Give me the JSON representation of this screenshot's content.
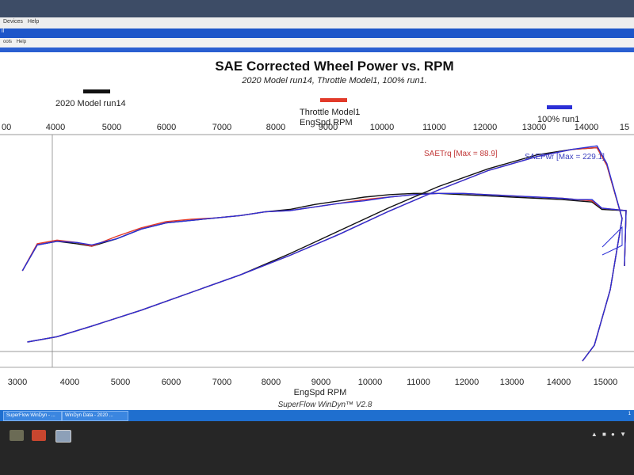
{
  "window": {
    "menu_top": [
      "Devices",
      "Help"
    ],
    "menu_second": [
      "ools",
      "Help"
    ],
    "blue_label": "il"
  },
  "chart_data": {
    "type": "line",
    "title": "SAE Corrected Wheel Power vs. RPM",
    "subtitle": "2020 Model run14, Throttle Model1, 100% run1.",
    "xlabel": "EngSpd  RPM",
    "xlabel_top": "EngSpd  RPM",
    "footer": "SuperFlow WinDyn™ V2.8",
    "top_ticks": [
      "00",
      "4000",
      "5000",
      "6000",
      "7000",
      "8000",
      "9000",
      "10000",
      "11000",
      "12000",
      "13000",
      "14000",
      "15"
    ],
    "bottom_ticks": [
      "3000",
      "4000",
      "5000",
      "6000",
      "7000",
      "8000",
      "9000",
      "10000",
      "11000",
      "12000",
      "13000",
      "14000",
      "15000"
    ],
    "xlim": [
      3000,
      15300
    ],
    "legend": [
      {
        "name": "2020 Model run14",
        "color": "#111111"
      },
      {
        "name": "Throttle Model1",
        "color": "#e23a2a"
      },
      {
        "name": "100% run1",
        "color": "#2b2fd6"
      }
    ],
    "annotations": {
      "torque": "SAETrq [Max = 88.9]",
      "power": "SAEPwr [Max = 229.1]"
    },
    "series": [
      {
        "name": "2020 Model run14 SAETrq",
        "color": "#111111",
        "x": [
          3100,
          3400,
          3800,
          4200,
          4500,
          5000,
          5500,
          6000,
          6500,
          7000,
          7500,
          8000,
          8500,
          9000,
          9500,
          10000,
          10500,
          11000,
          11500,
          12000,
          12500,
          13000,
          13500,
          14000,
          14300,
          14600,
          14800
        ],
        "y": [
          40,
          61,
          64,
          62,
          60,
          66,
          74,
          79,
          81,
          83,
          85,
          88,
          90,
          94,
          97,
          100,
          102,
          103,
          103,
          102,
          101,
          100,
          99,
          98,
          97,
          96,
          90
        ]
      },
      {
        "name": "Throttle Model1 SAETrq",
        "color": "#e23a2a",
        "x": [
          3100,
          3400,
          3800,
          4200,
          4500,
          5000,
          5500,
          6000,
          6500,
          7000,
          7500,
          8000,
          8500,
          9000,
          9500,
          10000,
          10500,
          11000,
          11500,
          12000,
          12500,
          13000,
          13500,
          14000,
          14300,
          14600,
          14800
        ],
        "y": [
          40,
          62,
          65,
          63,
          60,
          68,
          75,
          80,
          82,
          83,
          85,
          88,
          89,
          92,
          95,
          98,
          100,
          102,
          103,
          103,
          102,
          101,
          100,
          99,
          98,
          97,
          91
        ]
      },
      {
        "name": "100% run1 SAETrq",
        "color": "#2b2fd6",
        "x": [
          3100,
          3400,
          3800,
          4200,
          4500,
          5000,
          5500,
          6000,
          6500,
          7000,
          7500,
          8000,
          8500,
          9000,
          9500,
          10000,
          10500,
          11000,
          11500,
          12000,
          12500,
          13000,
          13500,
          14000,
          14300,
          14600,
          14800
        ],
        "y": [
          40,
          61,
          64,
          63,
          61,
          66,
          74,
          79,
          81,
          83,
          85,
          88,
          89,
          92,
          95,
          97,
          100,
          102,
          103,
          103,
          102,
          101,
          100,
          99,
          98,
          98,
          91
        ]
      },
      {
        "name": "2020 Model run14 SAEPwr",
        "color": "#111111",
        "x": [
          3200,
          3800,
          4500,
          5500,
          6500,
          7500,
          8500,
          9500,
          10500,
          11500,
          12500,
          13500,
          14200,
          14700,
          14900
        ],
        "y": [
          0,
          3,
          9,
          18,
          28,
          38,
          50,
          63,
          76,
          88,
          98,
          106,
          109,
          110,
          100
        ]
      },
      {
        "name": "Throttle Model1 SAEPwr",
        "color": "#e23a2a",
        "x": [
          3200,
          3800,
          4500,
          5500,
          6500,
          7500,
          8500,
          9500,
          10500,
          11500,
          12500,
          13500,
          14200,
          14700,
          14900
        ],
        "y": [
          0,
          3,
          9,
          18,
          28,
          38,
          49,
          61,
          74,
          86,
          97,
          105,
          109,
          110,
          100
        ]
      },
      {
        "name": "100% run1 SAEPwr",
        "color": "#2b2fd6",
        "x": [
          3200,
          3800,
          4500,
          5500,
          6500,
          7500,
          8500,
          9500,
          10500,
          11500,
          12500,
          13500,
          14200,
          14700,
          14900
        ],
        "y": [
          0,
          3,
          9,
          18,
          28,
          38,
          49,
          61,
          74,
          86,
          97,
          105,
          109,
          111,
          101
        ]
      }
    ]
  },
  "taskbar": {
    "items": [
      "SuperFlow WinDyn - ...",
      "WinDyn Data - 2020 ..."
    ],
    "tray": "1"
  }
}
